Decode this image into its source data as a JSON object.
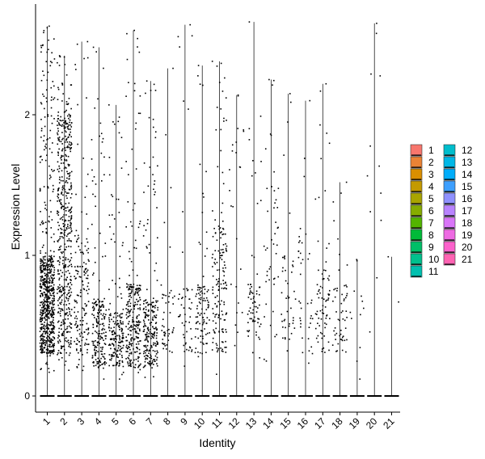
{
  "chart_data": {
    "type": "violin-jitter",
    "xlabel": "Identity",
    "ylabel": "Expression Level",
    "categories": [
      "1",
      "2",
      "3",
      "4",
      "5",
      "6",
      "7",
      "8",
      "9",
      "10",
      "11",
      "12",
      "13",
      "14",
      "15",
      "16",
      "17",
      "18",
      "19",
      "20",
      "21"
    ],
    "yticks": [
      0,
      1,
      2
    ],
    "ylim": [
      -0.1,
      2.75
    ],
    "legend_placement": "right",
    "series": [
      {
        "name": "1",
        "color": "#F8766D",
        "max": 2.63,
        "n_points": 700,
        "dense_lo": 0.3,
        "dense_hi": 1.0
      },
      {
        "name": "2",
        "color": "#EB8335",
        "max": 2.42,
        "n_points": 520,
        "dense_lo": 0.3,
        "dense_hi": 2.0
      },
      {
        "name": "3",
        "color": "#DA8F00",
        "max": 2.52,
        "n_points": 160,
        "dense_lo": 0.3,
        "dense_hi": 1.2
      },
      {
        "name": "4",
        "color": "#C49A00",
        "max": 2.48,
        "n_points": 200,
        "dense_lo": 0.2,
        "dense_hi": 0.7
      },
      {
        "name": "5",
        "color": "#A9A400",
        "max": 2.07,
        "n_points": 190,
        "dense_lo": 0.2,
        "dense_hi": 0.6
      },
      {
        "name": "6",
        "color": "#86AC00",
        "max": 2.6,
        "n_points": 260,
        "dense_lo": 0.2,
        "dense_hi": 0.8
      },
      {
        "name": "7",
        "color": "#53B400",
        "max": 2.24,
        "n_points": 230,
        "dense_lo": 0.2,
        "dense_hi": 0.7
      },
      {
        "name": "8",
        "color": "#00BA38",
        "max": 2.33,
        "n_points": 50,
        "dense_lo": 0.3,
        "dense_hi": 0.8
      },
      {
        "name": "9",
        "color": "#00BE67",
        "max": 2.64,
        "n_points": 50,
        "dense_lo": 0.3,
        "dense_hi": 0.8
      },
      {
        "name": "10",
        "color": "#00C08D",
        "max": 2.35,
        "n_points": 100,
        "dense_lo": 0.3,
        "dense_hi": 0.8
      },
      {
        "name": "11",
        "color": "#00C0AF",
        "max": 2.38,
        "n_points": 160,
        "dense_lo": 0.3,
        "dense_hi": 1.2
      },
      {
        "name": "12",
        "color": "#00BDCC",
        "max": 2.14,
        "n_points": 25,
        "dense_lo": 0.5,
        "dense_hi": 2.0
      },
      {
        "name": "13",
        "color": "#00B7E6",
        "max": 2.66,
        "n_points": 70,
        "dense_lo": 0.4,
        "dense_hi": 0.8
      },
      {
        "name": "14",
        "color": "#00ADFA",
        "max": 2.25,
        "n_points": 45,
        "dense_lo": 0.4,
        "dense_hi": 1.5
      },
      {
        "name": "15",
        "color": "#3D9FFF",
        "max": 2.15,
        "n_points": 45,
        "dense_lo": 0.4,
        "dense_hi": 1.0
      },
      {
        "name": "16",
        "color": "#8F91FF",
        "max": 2.1,
        "n_points": 40,
        "dense_lo": 0.3,
        "dense_hi": 1.2
      },
      {
        "name": "17",
        "color": "#B983FF",
        "max": 2.22,
        "n_points": 75,
        "dense_lo": 0.3,
        "dense_hi": 0.9
      },
      {
        "name": "18",
        "color": "#D975F8",
        "max": 1.52,
        "n_points": 55,
        "dense_lo": 0.3,
        "dense_hi": 0.8
      },
      {
        "name": "19",
        "color": "#EE6AE3",
        "max": 0.97,
        "n_points": 12,
        "dense_lo": 0.2,
        "dense_hi": 0.9
      },
      {
        "name": "20",
        "color": "#FC62CC",
        "max": 2.65,
        "n_points": 12,
        "dense_lo": 0.7,
        "dense_hi": 2.6
      },
      {
        "name": "21",
        "color": "#FF63B3",
        "max": 0.99,
        "n_points": 2,
        "dense_lo": 0.3,
        "dense_hi": 1.0
      }
    ]
  }
}
